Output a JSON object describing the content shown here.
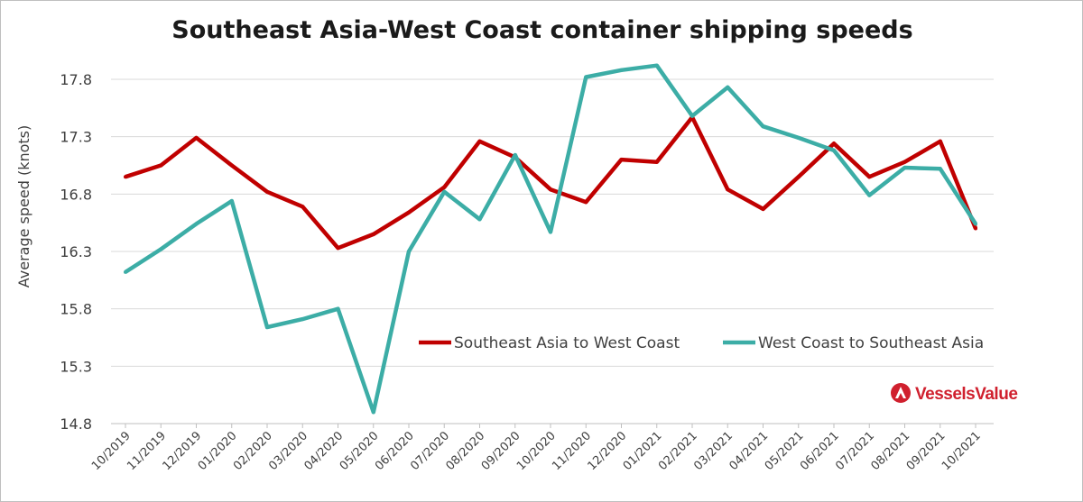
{
  "chart_data": {
    "type": "line",
    "title": "Southeast Asia-West Coast container shipping speeds",
    "xlabel": "",
    "ylabel": "Average speed (knots)",
    "ylim": [
      14.8,
      17.8
    ],
    "yticks": [
      "17.8",
      "17.3",
      "16.8",
      "16.3",
      "15.8",
      "15.3",
      "14.8"
    ],
    "grid": true,
    "legend_position": "right",
    "categories": [
      "10/2019",
      "11/2019",
      "12/2019",
      "01/2020",
      "02/2020",
      "03/2020",
      "04/2020",
      "05/2020",
      "06/2020",
      "07/2020",
      "08/2020",
      "09/2020",
      "10/2020",
      "11/2020",
      "12/2020",
      "01/2021",
      "02/2021",
      "03/2021",
      "04/2021",
      "05/2021",
      "06/2021",
      "07/2021",
      "08/2021",
      "09/2021",
      "10/2021"
    ],
    "series": [
      {
        "name": "Southeast Asia to West Coast",
        "color": "#c00000",
        "values": [
          16.95,
          17.05,
          17.29,
          17.05,
          16.82,
          16.69,
          16.33,
          16.45,
          16.64,
          16.86,
          17.26,
          17.12,
          16.84,
          16.73,
          17.1,
          17.08,
          17.47,
          16.84,
          16.67,
          16.95,
          17.24,
          16.95,
          17.08,
          17.26,
          16.5
        ]
      },
      {
        "name": "West Coast to Southeast Asia",
        "color": "#3cada6",
        "values": [
          16.12,
          16.32,
          16.54,
          16.74,
          15.64,
          15.71,
          15.8,
          14.9,
          16.3,
          16.82,
          16.58,
          17.14,
          16.47,
          17.82,
          17.88,
          17.92,
          17.48,
          17.73,
          17.39,
          17.29,
          17.18,
          16.79,
          17.03,
          17.02,
          16.54
        ]
      }
    ]
  },
  "logo": {
    "text": "VesselsValue",
    "icon": "vesselsvalue-logo-icon",
    "color": "#d0202e"
  }
}
